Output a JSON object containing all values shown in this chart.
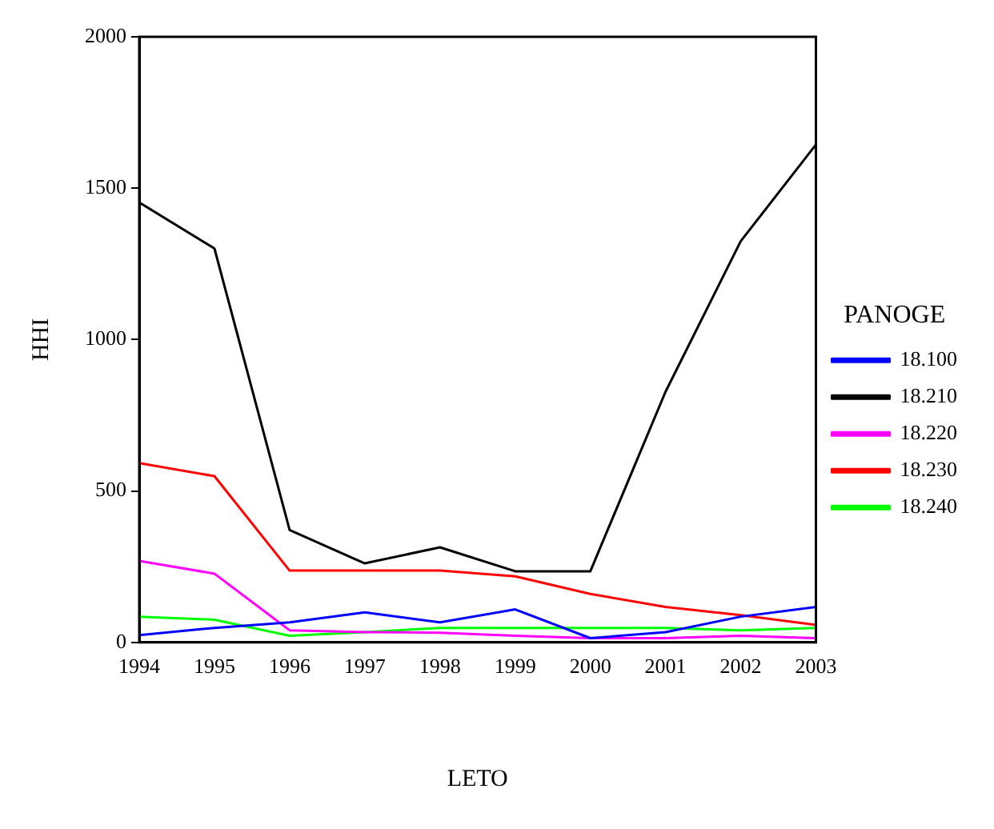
{
  "chart_data": {
    "type": "line",
    "xlabel": "LETO",
    "ylabel": "HHI",
    "legend_title": "PANOGE",
    "legend": "right",
    "grid": false,
    "x": [
      1994,
      1995,
      1996,
      1997,
      1998,
      1999,
      2000,
      2001,
      2002,
      2003
    ],
    "xlim": [
      1994,
      2003
    ],
    "xticks": [
      1994,
      1995,
      1996,
      1997,
      1998,
      1999,
      2000,
      2001,
      2002,
      2003
    ],
    "ylim": [
      0,
      2000
    ],
    "yticks": [
      0,
      500,
      1000,
      1500,
      2000
    ],
    "series": [
      {
        "name": "18.100",
        "color": "#0000ff",
        "values": [
          24,
          48,
          66,
          99,
          66,
          109,
          14,
          34,
          85,
          117
        ]
      },
      {
        "name": "18.210",
        "color": "#000000",
        "values": [
          1453,
          1301,
          371,
          261,
          314,
          235,
          235,
          828,
          1325,
          1644
        ]
      },
      {
        "name": "18.220",
        "color": "#ff00ff",
        "values": [
          269,
          227,
          40,
          34,
          32,
          22,
          14,
          14,
          22,
          14
        ]
      },
      {
        "name": "18.230",
        "color": "#ff0000",
        "values": [
          592,
          549,
          237,
          237,
          237,
          218,
          160,
          117,
          90,
          58
        ]
      },
      {
        "name": "18.240",
        "color": "#00ff00",
        "values": [
          85,
          75,
          22,
          34,
          48,
          48,
          48,
          48,
          40,
          48
        ]
      }
    ]
  }
}
